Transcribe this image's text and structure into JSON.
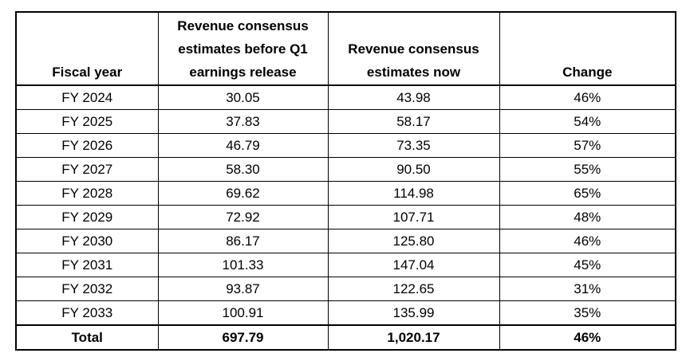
{
  "table": {
    "headers": {
      "fiscal_year": "Fiscal year",
      "before_lines": [
        "Revenue consensus",
        "estimates before Q1",
        "earnings release"
      ],
      "now_lines": [
        "Revenue consensus",
        "estimates now"
      ],
      "change": "Change"
    },
    "rows": [
      {
        "year": "FY 2024",
        "before": "30.05",
        "now": "43.98",
        "change": "46%"
      },
      {
        "year": "FY 2025",
        "before": "37.83",
        "now": "58.17",
        "change": "54%"
      },
      {
        "year": "FY 2026",
        "before": "46.79",
        "now": "73.35",
        "change": "57%"
      },
      {
        "year": "FY 2027",
        "before": "58.30",
        "now": "90.50",
        "change": "55%"
      },
      {
        "year": "FY 2028",
        "before": "69.62",
        "now": "114.98",
        "change": "65%"
      },
      {
        "year": "FY 2029",
        "before": "72.92",
        "now": "107.71",
        "change": "48%"
      },
      {
        "year": "FY 2030",
        "before": "86.17",
        "now": "125.80",
        "change": "46%"
      },
      {
        "year": "FY 2031",
        "before": "101.33",
        "now": "147.04",
        "change": "45%"
      },
      {
        "year": "FY 2032",
        "before": "93.87",
        "now": "122.65",
        "change": "31%"
      },
      {
        "year": "FY 2033",
        "before": "100.91",
        "now": "135.99",
        "change": "35%"
      }
    ],
    "total": {
      "label": "Total",
      "before": "697.79",
      "now": "1,020.17",
      "change": "46%"
    }
  }
}
